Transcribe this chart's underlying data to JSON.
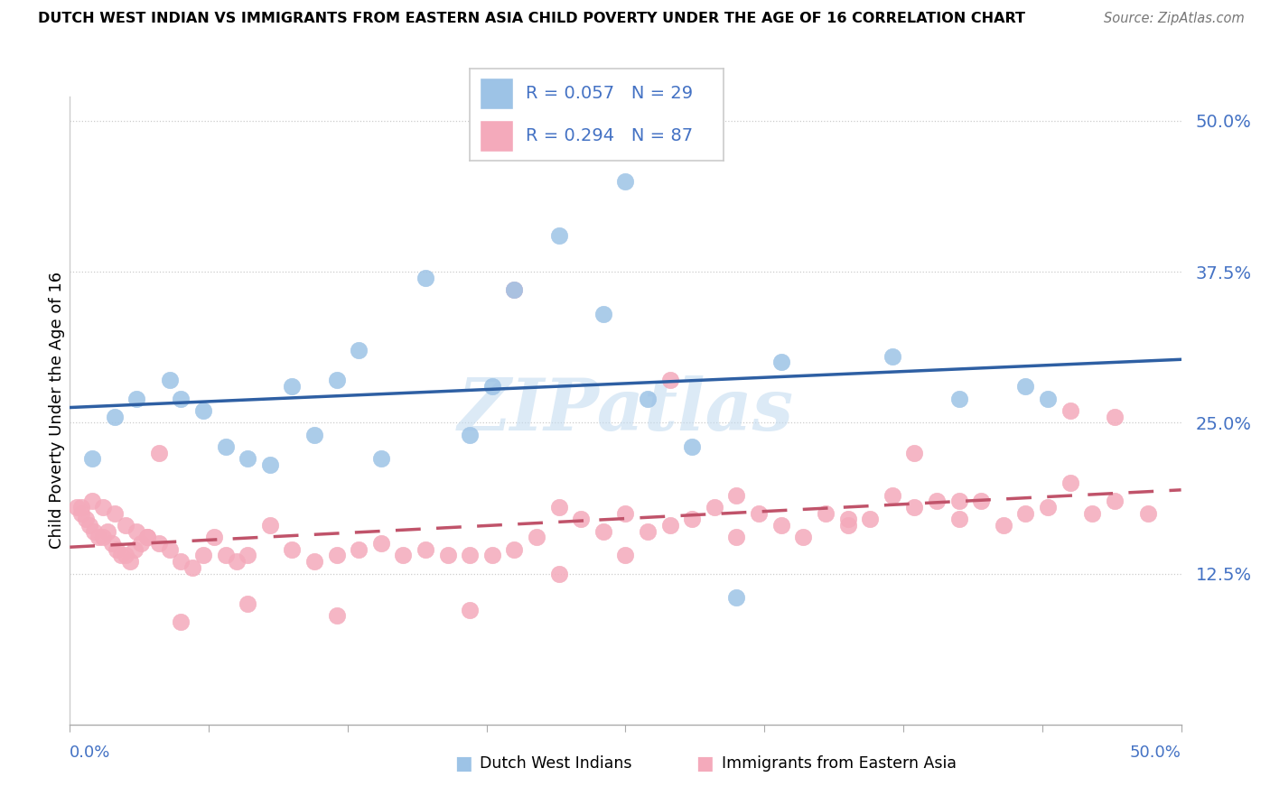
{
  "title": "DUTCH WEST INDIAN VS IMMIGRANTS FROM EASTERN ASIA CHILD POVERTY UNDER THE AGE OF 16 CORRELATION CHART",
  "source": "Source: ZipAtlas.com",
  "ylabel": "Child Poverty Under the Age of 16",
  "xlim": [
    0.0,
    50.0
  ],
  "ylim": [
    0.0,
    52.0
  ],
  "ytick_vals": [
    12.5,
    25.0,
    37.5,
    50.0
  ],
  "ytick_labels": [
    "12.5%",
    "25.0%",
    "37.5%",
    "50.0%"
  ],
  "watermark": "ZIPatlas",
  "legend_r1": "R = 0.057",
  "legend_n1": "N = 29",
  "legend_r2": "R = 0.294",
  "legend_n2": "N = 87",
  "blue_color": "#9DC3E6",
  "pink_color": "#F4AABB",
  "blue_line_color": "#2E5FA3",
  "pink_line_color": "#C0536A",
  "legend_text_color": "#4472C4",
  "axis_text_color": "#4472C4",
  "bottom_label1": "Dutch West Indians",
  "bottom_label2": "Immigrants from Eastern Asia",
  "blue_scatter_x": [
    1.0,
    2.0,
    3.0,
    4.5,
    5.0,
    6.0,
    7.0,
    8.0,
    9.0,
    10.0,
    11.0,
    12.0,
    14.0,
    16.0,
    18.0,
    20.0,
    22.0,
    24.0,
    25.0,
    28.0,
    30.0,
    37.0,
    40.0,
    43.0,
    44.0,
    13.0,
    19.0,
    26.0,
    32.0
  ],
  "blue_scatter_y": [
    22.0,
    25.5,
    27.0,
    28.5,
    27.0,
    26.0,
    23.0,
    22.0,
    21.5,
    28.0,
    24.0,
    28.5,
    22.0,
    37.0,
    24.0,
    36.0,
    40.5,
    34.0,
    45.0,
    23.0,
    10.5,
    30.5,
    27.0,
    28.0,
    27.0,
    31.0,
    28.0,
    27.0,
    30.0
  ],
  "pink_scatter_x": [
    0.3,
    0.5,
    0.7,
    0.9,
    1.1,
    1.3,
    1.5,
    1.7,
    1.9,
    2.1,
    2.3,
    2.5,
    2.7,
    2.9,
    3.2,
    3.5,
    4.0,
    4.5,
    5.0,
    5.5,
    6.0,
    6.5,
    7.0,
    7.5,
    8.0,
    9.0,
    10.0,
    11.0,
    12.0,
    13.0,
    14.0,
    15.0,
    16.0,
    17.0,
    18.0,
    19.0,
    20.0,
    21.0,
    22.0,
    23.0,
    24.0,
    25.0,
    26.0,
    27.0,
    28.0,
    29.0,
    30.0,
    31.0,
    32.0,
    33.0,
    34.0,
    35.0,
    36.0,
    37.0,
    38.0,
    39.0,
    40.0,
    41.0,
    42.0,
    43.0,
    44.0,
    45.0,
    46.0,
    47.0,
    48.5,
    0.5,
    1.0,
    1.5,
    2.0,
    2.5,
    3.0,
    3.5,
    4.0,
    5.0,
    8.0,
    12.0,
    18.0,
    22.0,
    25.0,
    30.0,
    35.0,
    40.0,
    45.0,
    20.0,
    38.0,
    47.0,
    27.0
  ],
  "pink_scatter_y": [
    18.0,
    17.5,
    17.0,
    16.5,
    16.0,
    15.5,
    15.5,
    16.0,
    15.0,
    14.5,
    14.0,
    14.0,
    13.5,
    14.5,
    15.0,
    15.5,
    15.0,
    14.5,
    13.5,
    13.0,
    14.0,
    15.5,
    14.0,
    13.5,
    14.0,
    16.5,
    14.5,
    13.5,
    14.0,
    14.5,
    15.0,
    14.0,
    14.5,
    14.0,
    14.0,
    14.0,
    14.5,
    15.5,
    18.0,
    17.0,
    16.0,
    17.5,
    16.0,
    16.5,
    17.0,
    18.0,
    19.0,
    17.5,
    16.5,
    15.5,
    17.5,
    16.5,
    17.0,
    19.0,
    18.0,
    18.5,
    17.0,
    18.5,
    16.5,
    17.5,
    18.0,
    26.0,
    17.5,
    18.5,
    17.5,
    18.0,
    18.5,
    18.0,
    17.5,
    16.5,
    16.0,
    15.5,
    22.5,
    8.5,
    10.0,
    9.0,
    9.5,
    12.5,
    14.0,
    15.5,
    17.0,
    18.5,
    20.0,
    36.0,
    22.5,
    25.5,
    28.5
  ]
}
